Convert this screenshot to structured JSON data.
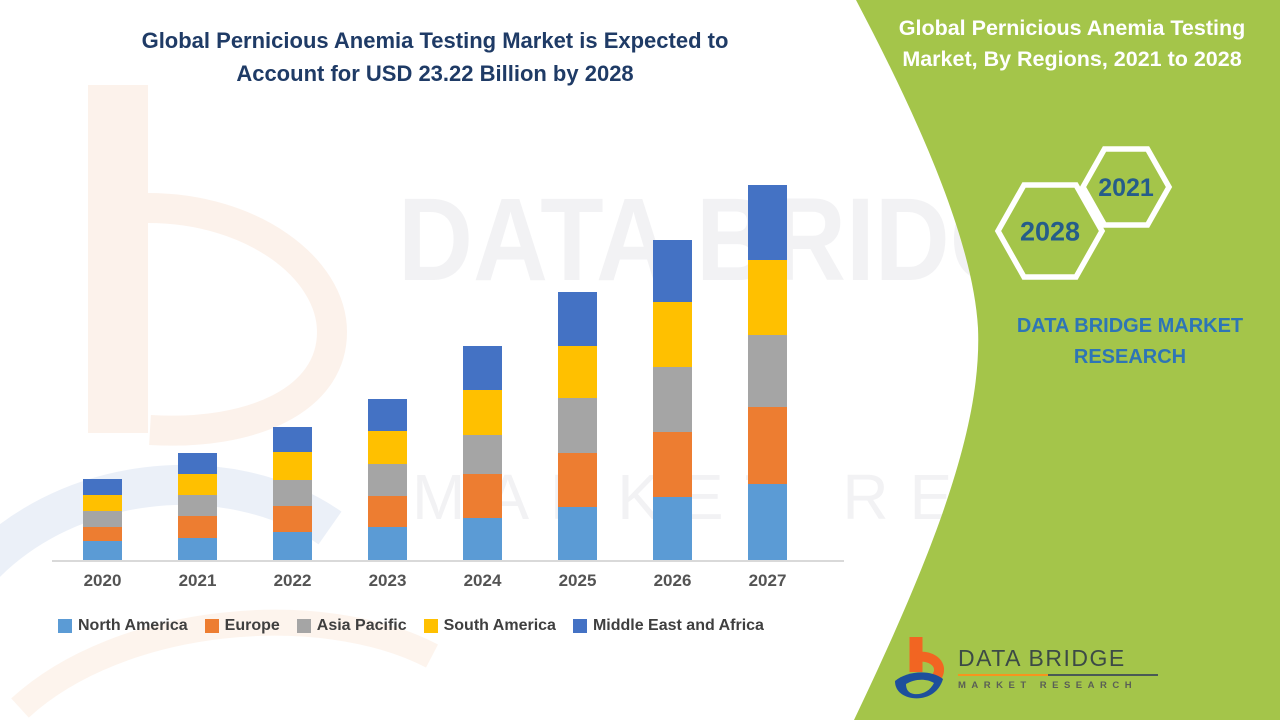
{
  "title": {
    "line1": "Global Pernicious Anemia Testing Market is Expected to",
    "line2": "Account for USD 23.22 Billion by 2028"
  },
  "side_panel": {
    "heading_line1": "Global Pernicious Anemia Testing",
    "heading_line2": "Market, By Regions, 2021 to 2028",
    "hex_large_year": "2028",
    "hex_small_year": "2021",
    "brand_line1": "DATA BRIDGE MARKET",
    "brand_line2": "RESEARCH"
  },
  "watermark": {
    "line1": "DATA BRIDGE",
    "line2": "MARKET RESEARCH"
  },
  "footer_logo": {
    "name": "DATA BRIDGE",
    "subtitle": "MARKET RESEARCH"
  },
  "colors": {
    "panel_green": "#a4c54a",
    "title_text": "#1f3b66",
    "hex_year_text": "#265d8a",
    "side_brand_text": "#2e75b6",
    "logo_orange": "#f26522",
    "logo_blue": "#1d4f9c",
    "axis_line": "#d9d9d9"
  },
  "chart_data": {
    "type": "bar",
    "stacked": true,
    "title": "Global Pernicious Anemia Testing Market is Expected to Account for USD 23.22 Billion by 2028",
    "xlabel": "",
    "ylabel": "",
    "grid": false,
    "legend_position": "bottom",
    "y_axis_shown": false,
    "unit": "relative market size (no y-axis scale shown; 2028 total stated as USD 23.22 billion)",
    "categories": [
      "2020",
      "2021",
      "2022",
      "2023",
      "2024",
      "2025",
      "2026",
      "2027"
    ],
    "series": [
      {
        "name": "North America",
        "color": "#5b9bd5",
        "values": [
          19,
          22,
          28,
          33,
          42,
          53,
          63,
          76
        ]
      },
      {
        "name": "Europe",
        "color": "#ed7d31",
        "values": [
          14,
          22,
          26,
          31,
          44,
          54,
          65,
          77
        ]
      },
      {
        "name": "Asia Pacific",
        "color": "#a5a5a5",
        "values": [
          16,
          21,
          26,
          32,
          39,
          55,
          65,
          72
        ]
      },
      {
        "name": "South America",
        "color": "#ffc000",
        "values": [
          16,
          21,
          28,
          33,
          45,
          52,
          65,
          75
        ]
      },
      {
        "name": "Middle East and Africa",
        "color": "#4472c4",
        "values": [
          16,
          21,
          25,
          32,
          44,
          54,
          62,
          75
        ]
      }
    ],
    "totals_relative": [
      81,
      107,
      133,
      161,
      214,
      268,
      320,
      375
    ]
  }
}
